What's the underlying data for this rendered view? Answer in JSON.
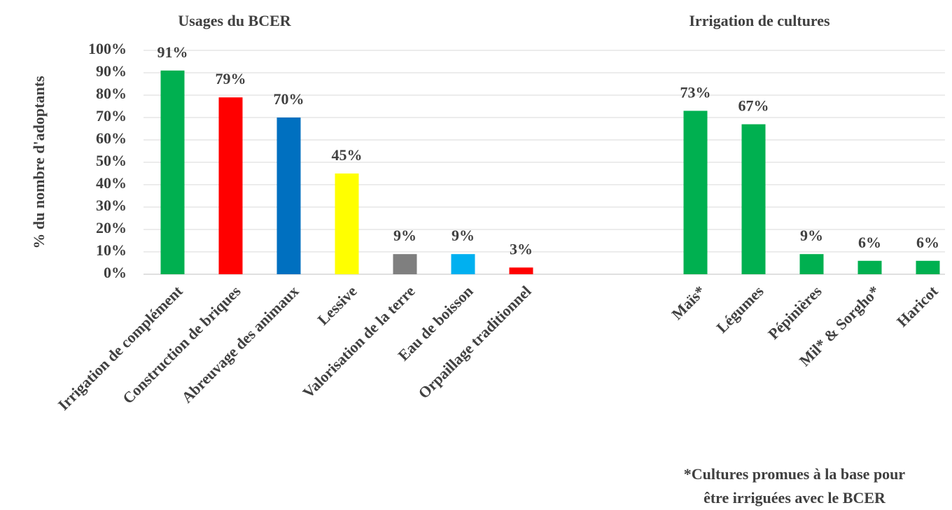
{
  "chart_data": [
    {
      "type": "bar",
      "title": "Usages du BCER",
      "y_label": "% du nombre  d'adoptants",
      "categories": [
        "Irrigation de complément",
        "Construction de briques",
        "Abreuvage des animaux",
        "Lessive",
        "Valorisation de la terre",
        "Eau de boisson",
        "Orpaillage traditionnel"
      ],
      "values": [
        91,
        79,
        70,
        45,
        9,
        9,
        3
      ],
      "value_labels": [
        "91%",
        "79%",
        "70%",
        "45%",
        "9%",
        "9%",
        "3%"
      ],
      "colors": [
        "#00b050",
        "#ff0000",
        "#0070c0",
        "#ffff00",
        "#7f7f7f",
        "#00b0f0",
        "#ff0000"
      ],
      "ylim": [
        0,
        100
      ],
      "yticks": [
        {
          "value": 0,
          "label": "0%"
        },
        {
          "value": 10,
          "label": "10%"
        },
        {
          "value": 20,
          "label": "20%"
        },
        {
          "value": 30,
          "label": "30%"
        },
        {
          "value": 40,
          "label": "40%"
        },
        {
          "value": 50,
          "label": "50%"
        },
        {
          "value": 60,
          "label": "60%"
        },
        {
          "value": 70,
          "label": "70%"
        },
        {
          "value": 80,
          "label": "80%"
        },
        {
          "value": 90,
          "label": "90%"
        },
        {
          "value": 100,
          "label": "100%"
        }
      ],
      "grid": true
    },
    {
      "type": "bar",
      "title": "Irrigation  de cultures",
      "categories": [
        "Maïs*",
        "Légumes",
        "Pépinières",
        "Mil* & Sorgho*",
        "Haricot"
      ],
      "values": [
        73,
        67,
        9,
        6,
        6
      ],
      "value_labels": [
        "73%",
        "67%",
        "9%",
        "6%",
        "6%"
      ],
      "color": "#00b050",
      "ylim": [
        0,
        100
      ],
      "note": [
        "*Cultures  promues  à la base pour",
        "être irriguées  avec le BCER"
      ]
    }
  ]
}
